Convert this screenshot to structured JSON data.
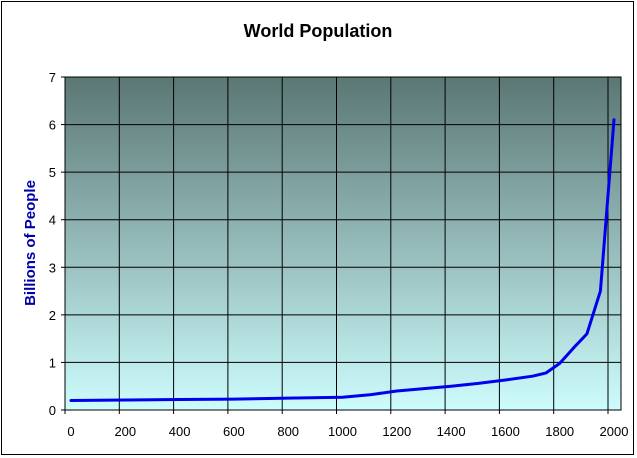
{
  "colors": {
    "plot_top": "#5b7774",
    "plot_bottom": "#cdfcfd",
    "series_line": "#0000ee",
    "ylabel": "#0000aa",
    "grid": "#000000",
    "frame": "#000000"
  },
  "chart_data": {
    "type": "line",
    "title": "World Population",
    "xlabel": "",
    "ylabel": "Billions of People",
    "xlim": [
      0,
      2000
    ],
    "ylim": [
      0,
      7
    ],
    "x_ticks": [
      0,
      200,
      400,
      600,
      800,
      1000,
      1200,
      1400,
      1600,
      1800,
      2000
    ],
    "y_ticks": [
      0,
      1,
      2,
      3,
      4,
      5,
      6,
      7
    ],
    "grid": true,
    "legend": "none",
    "series": [
      {
        "x": [
          0,
          200,
          400,
          600,
          800,
          1000,
          1100,
          1200,
          1300,
          1400,
          1500,
          1600,
          1700,
          1750,
          1800,
          1850,
          1900,
          1950,
          2000
        ],
        "y": [
          0.2,
          0.21,
          0.22,
          0.23,
          0.25,
          0.27,
          0.32,
          0.4,
          0.45,
          0.5,
          0.56,
          0.63,
          0.71,
          0.78,
          0.98,
          1.3,
          1.6,
          2.5,
          6.1
        ]
      }
    ]
  }
}
